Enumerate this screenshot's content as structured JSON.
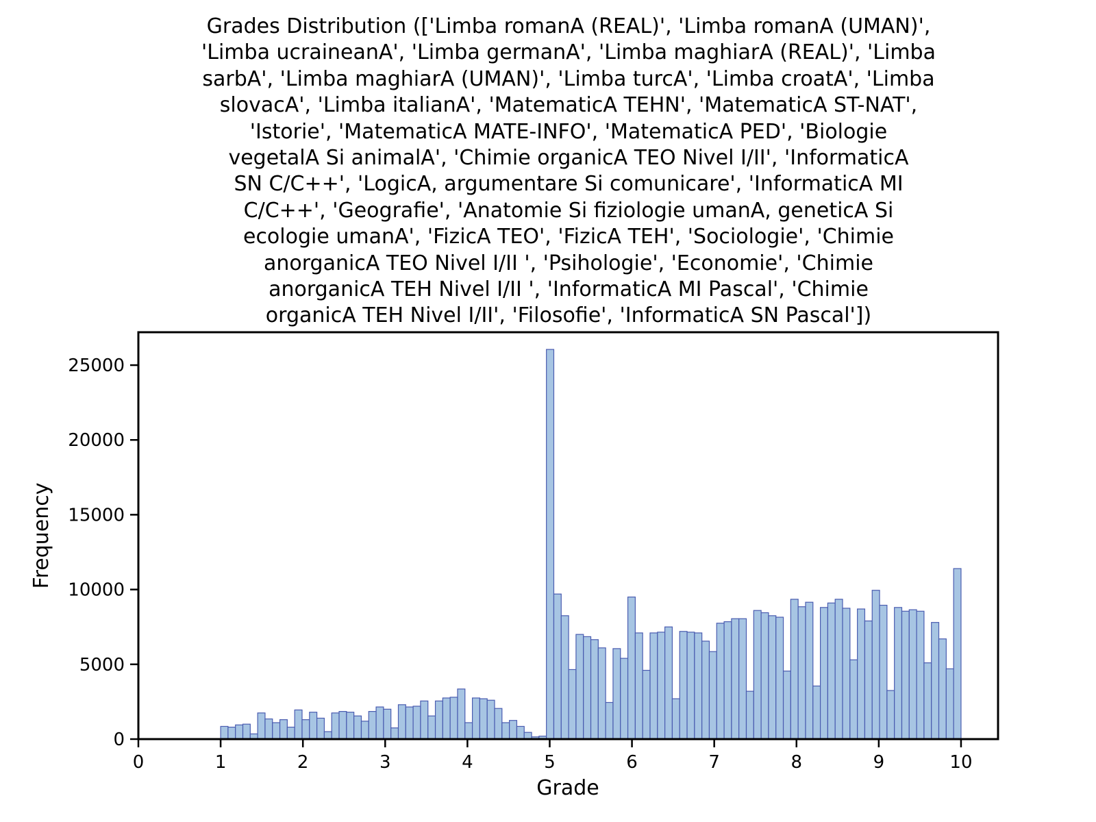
{
  "chart_data": {
    "type": "bar",
    "title": "Grades Distribution (['Limba romanA (REAL)', 'Limba romanA (UMAN)', 'Limba ucraineanA', 'Limba germanA', 'Limba maghiarA (REAL)', 'Limba sarbA', 'Limba maghiarA (UMAN)', 'Limba turcA', 'Limba croatA', 'Limba slovacA', 'Limba italianA', 'MatematicA TEHN', 'MatematicA ST-NAT', 'Istorie', 'MatematicA MATE-INFO', 'MatematicA PED', 'Biologie vegetalA Si animalA', 'Chimie organicA TEO Nivel I/II', 'InformaticA SN C/C++', 'LogicA, argumentare Si comunicare', 'InformaticA MI C/C++', 'Geografie', 'Anatomie Si fiziologie umanA, geneticA Si ecologie umanA', 'FizicA TEO', 'FizicA TEH', 'Sociologie', 'Chimie anorganicA TEO Nivel I/II     ', 'Psihologie', 'Economie', 'Chimie anorganicA TEH Nivel I/II     ', 'InformaticA MI Pascal', 'Chimie organicA TEH Nivel I/II', 'Filosofie', 'InformaticA SN Pascal'])",
    "title_lines": [
      "Grades Distribution (['Limba romanA (REAL)', 'Limba romanA (UMAN)',",
      "'Limba ucraineanA', 'Limba germanA', 'Limba maghiarA (REAL)', 'Limba",
      "sarbA', 'Limba maghiarA (UMAN)', 'Limba turcA', 'Limba croatA', 'Limba",
      "slovacA', 'Limba italianA', 'MatematicA TEHN', 'MatematicA ST-NAT',",
      "'Istorie', 'MatematicA MATE-INFO', 'MatematicA PED', 'Biologie",
      "vegetalA Si animalA', 'Chimie organicA TEO Nivel I/II', 'InformaticA",
      "SN C/C++', 'LogicA, argumentare Si comunicare', 'InformaticA MI",
      "C/C++', 'Geografie', 'Anatomie Si fiziologie umanA, geneticA Si",
      "ecologie umanA', 'FizicA TEO', 'FizicA TEH', 'Sociologie', 'Chimie",
      "anorganicA TEO Nivel I/II     ', 'Psihologie', 'Economie', 'Chimie",
      "anorganicA TEH Nivel I/II     ', 'InformaticA MI Pascal', 'Chimie",
      "organicA TEH Nivel I/II', 'Filosofie', 'InformaticA SN Pascal'])"
    ],
    "xlabel": "Grade",
    "ylabel": "Frequency",
    "xlim": [
      0,
      10.45
    ],
    "ylim": [
      0,
      27200
    ],
    "xticks": [
      "0",
      "1",
      "2",
      "3",
      "4",
      "5",
      "6",
      "7",
      "8",
      "9",
      "10"
    ],
    "yticks": [
      "0",
      "5000",
      "10000",
      "15000",
      "20000",
      "25000"
    ],
    "grid": false,
    "legend": "none",
    "bin_start": 1.0,
    "bin_width": 0.09,
    "bar_fill": "#a7c5e3",
    "bar_edge": "#4a5cb0",
    "values": [
      850,
      800,
      950,
      1000,
      350,
      1750,
      1350,
      1100,
      1300,
      800,
      1950,
      1300,
      1800,
      1400,
      500,
      1750,
      1850,
      1800,
      1550,
      1200,
      1850,
      2150,
      2000,
      750,
      2300,
      2150,
      2200,
      2550,
      1550,
      2550,
      2750,
      2800,
      3350,
      1100,
      2750,
      2700,
      2600,
      2050,
      1100,
      1250,
      850,
      450,
      150,
      200,
      26050,
      9700,
      8250,
      4650,
      7000,
      6850,
      6650,
      6100,
      2450,
      6050,
      5400,
      9500,
      7100,
      4600,
      7100,
      7150,
      7500,
      2700,
      7200,
      7150,
      7100,
      6550,
      5850,
      7750,
      7850,
      8050,
      8050,
      3200,
      8600,
      8450,
      8250,
      8150,
      4550,
      9350,
      8850,
      9150,
      3550,
      8800,
      9100,
      9350,
      8750,
      5300,
      8700,
      7900,
      9950,
      8950,
      3250,
      8800,
      8550,
      8650,
      8550,
      5100,
      7800,
      6700,
      4700,
      11400
    ]
  }
}
